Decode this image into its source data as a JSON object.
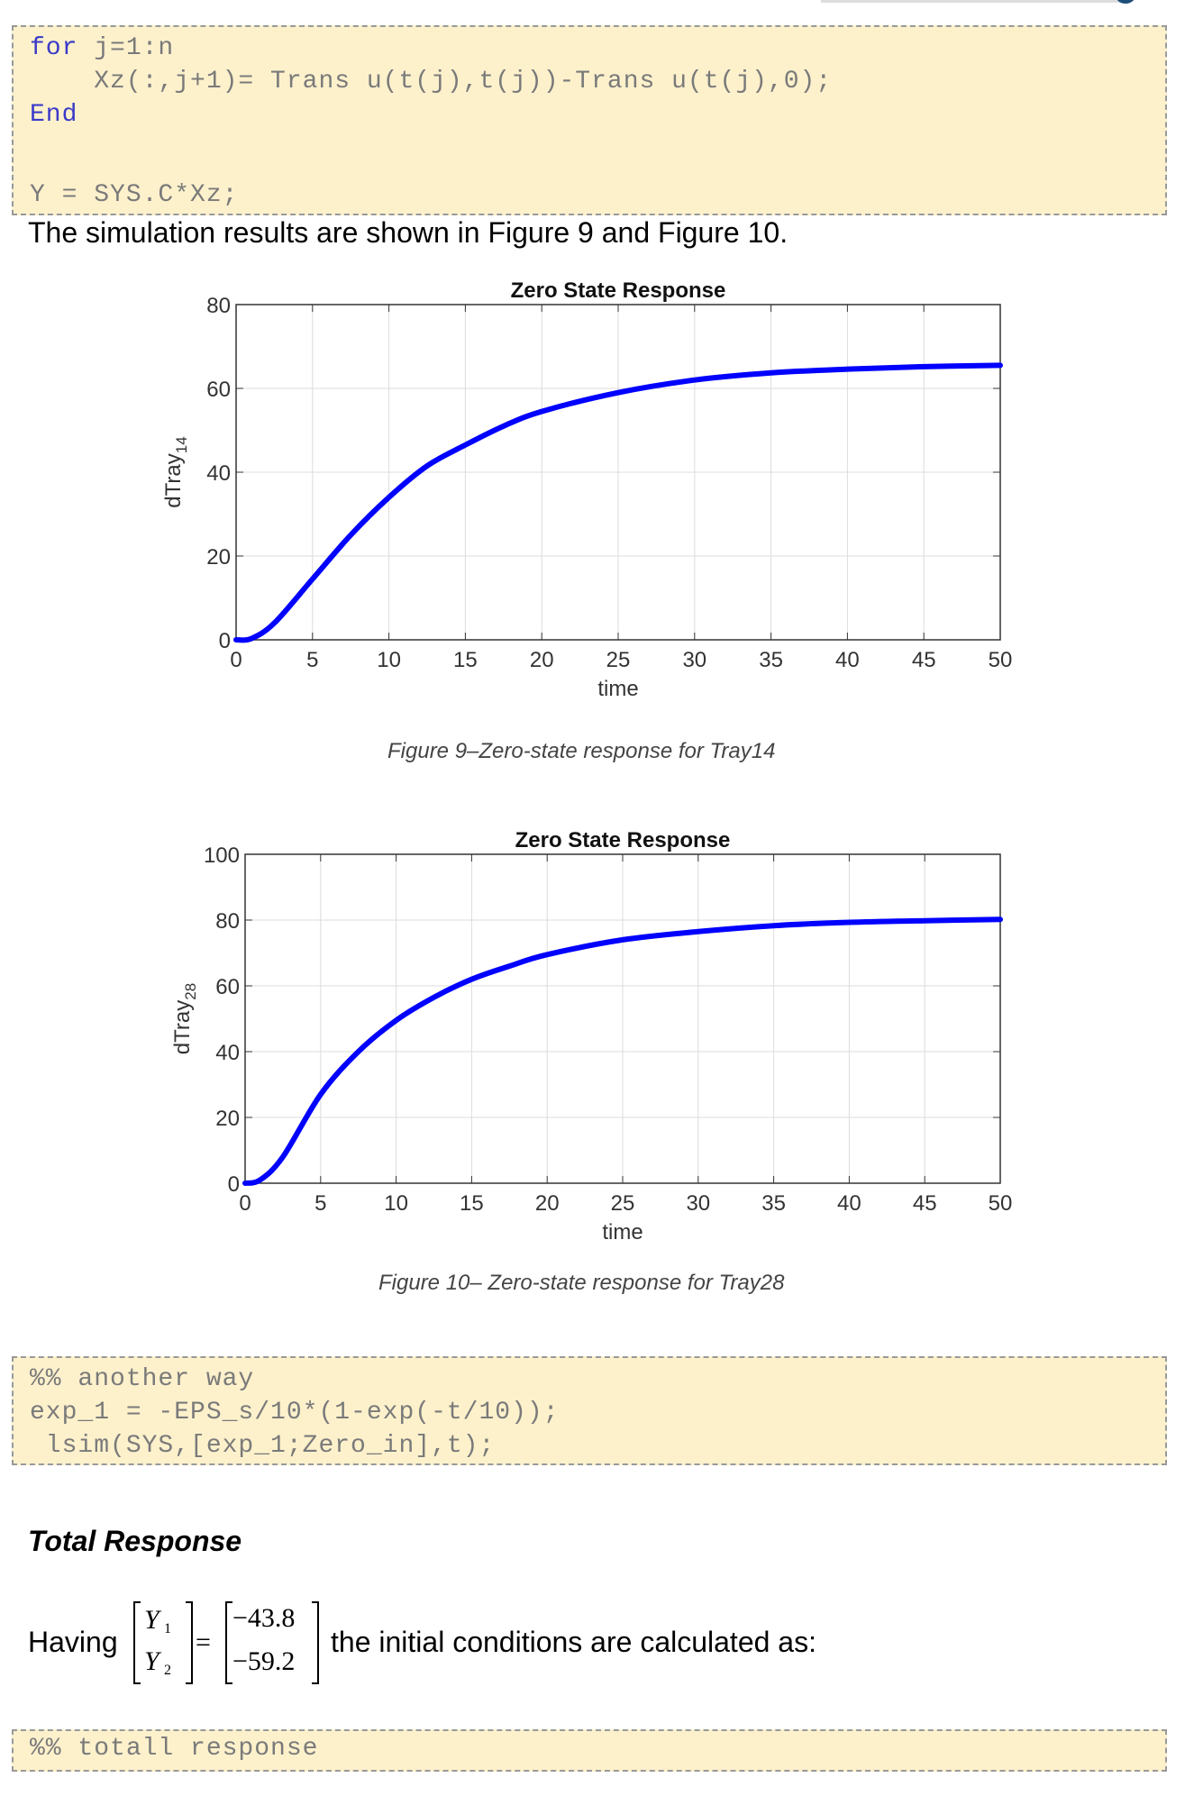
{
  "code_block_1": {
    "lines": [
      {
        "kw": "for",
        "text": " j=1:n"
      },
      {
        "kw": "",
        "text": "    Xz(:,j+1)= Trans u(t(j),t(j))-Trans u(t(j),0);"
      },
      {
        "kw": "End",
        "text": ""
      },
      {
        "kw": "",
        "text": "Y = SYS.C*Xz;"
      }
    ]
  },
  "intro_sentence": "The simulation results are shown in Figure 9 and Figure 10.",
  "figures": [
    {
      "caption": "Figure 9–Zero-state response for Tray14"
    },
    {
      "caption": "Figure 10– Zero-state response for Tray28"
    }
  ],
  "chart_data": [
    {
      "type": "line",
      "title": "Zero State Response",
      "xlabel": "time",
      "ylabel": "dTray",
      "ylabel_subscript": "14",
      "xlim": [
        0,
        50
      ],
      "ylim": [
        0,
        80
      ],
      "xticks": [
        0,
        5,
        10,
        15,
        20,
        25,
        30,
        35,
        40,
        45,
        50
      ],
      "yticks": [
        0,
        20,
        40,
        60,
        80
      ],
      "grid": true,
      "line_color": "#0000ff",
      "x": [
        0,
        1,
        2.5,
        5,
        7.5,
        10,
        12.5,
        15,
        17.5,
        20,
        25,
        30,
        35,
        40,
        45,
        50
      ],
      "y": [
        0,
        0.3,
        4,
        14.5,
        25,
        34,
        41.5,
        46.5,
        51,
        54.5,
        59,
        62,
        63.7,
        64.6,
        65.2,
        65.5
      ]
    },
    {
      "type": "line",
      "title": "Zero State Response",
      "xlabel": "time",
      "ylabel": "dTray",
      "ylabel_subscript": "28",
      "xlim": [
        0,
        50
      ],
      "ylim": [
        0,
        100
      ],
      "xticks": [
        0,
        5,
        10,
        15,
        20,
        25,
        30,
        35,
        40,
        45,
        50
      ],
      "yticks": [
        0,
        20,
        40,
        60,
        80,
        100
      ],
      "grid": true,
      "line_color": "#0000ff",
      "x": [
        0,
        1,
        2.5,
        5,
        7.5,
        10,
        12.5,
        15,
        17.5,
        20,
        25,
        30,
        35,
        40,
        45,
        50
      ],
      "y": [
        0,
        1,
        8,
        27,
        40,
        49.5,
        56.5,
        62,
        66,
        69.5,
        74,
        76.5,
        78.3,
        79.3,
        79.8,
        80.2
      ]
    }
  ],
  "code_block_2": {
    "lines": [
      "%% another way",
      "exp_1 = -EPS_s/10*(1-exp(-t/10));",
      " lsim(SYS,[exp_1;Zero_in],t);"
    ]
  },
  "section_heading": "Total Response",
  "having": {
    "prefix": "Having",
    "lhs": [
      "Y",
      "1",
      "Y",
      "2"
    ],
    "equals": "=",
    "rhs": [
      "−43.8",
      "−59.2"
    ],
    "suffix": "the initial conditions are calculated as:"
  },
  "code_block_3": {
    "lines": [
      "%% totall response"
    ]
  }
}
